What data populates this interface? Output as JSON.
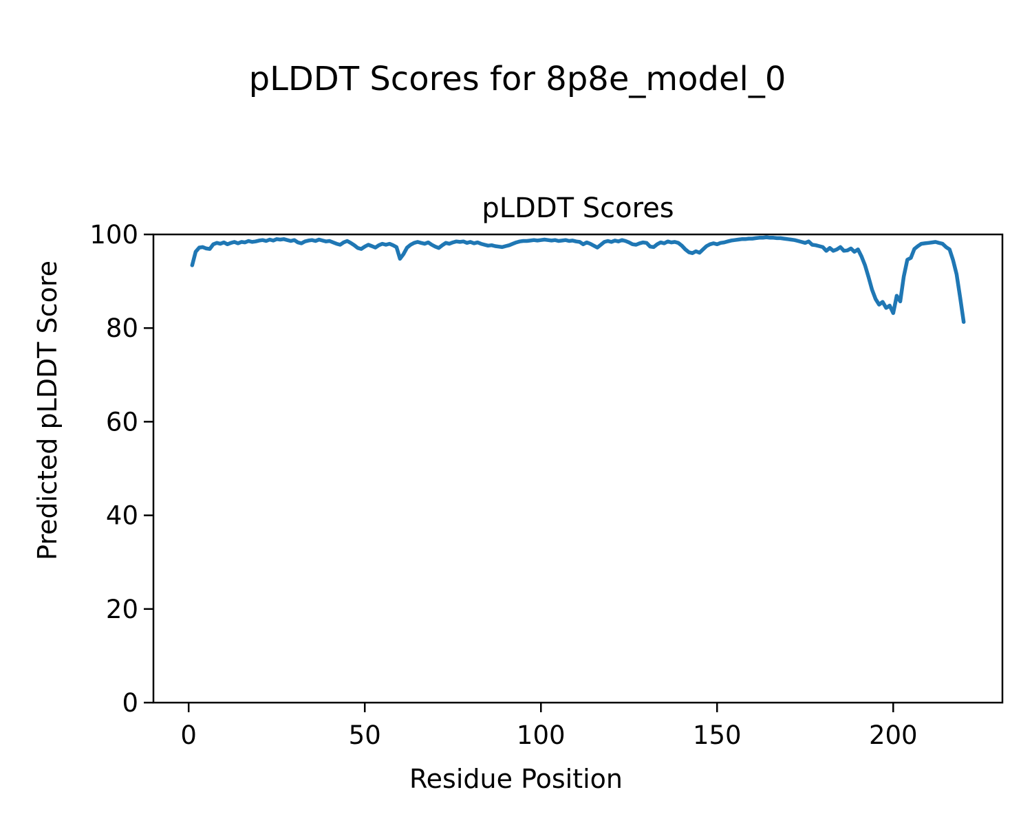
{
  "figure": {
    "suptitle": "pLDDT Scores for 8p8e_model_0",
    "background_color": "#ffffff",
    "text_color": "#000000"
  },
  "chart_data": {
    "type": "line",
    "title": "pLDDT Scores",
    "xlabel": "Residue Position",
    "ylabel": "Predicted pLDDT Score",
    "xlim": [
      -10,
      231
    ],
    "ylim": [
      0,
      100
    ],
    "xticks": [
      0,
      50,
      100,
      150,
      200
    ],
    "yticks": [
      0,
      20,
      40,
      60,
      80,
      100
    ],
    "grid": false,
    "legend": "none",
    "series": [
      {
        "name": "pLDDT",
        "color": "#1f77b4",
        "x_start": 1,
        "x_step": 1,
        "values": [
          93.4,
          96.3,
          97.2,
          97.3,
          97.0,
          96.9,
          97.9,
          98.2,
          98.0,
          98.3,
          97.9,
          98.2,
          98.4,
          98.1,
          98.4,
          98.3,
          98.6,
          98.4,
          98.5,
          98.7,
          98.8,
          98.6,
          98.9,
          98.7,
          99.0,
          98.9,
          99.0,
          98.8,
          98.6,
          98.8,
          98.3,
          98.1,
          98.5,
          98.7,
          98.8,
          98.6,
          98.9,
          98.7,
          98.5,
          98.6,
          98.3,
          98.0,
          97.8,
          98.3,
          98.6,
          98.2,
          97.7,
          97.1,
          96.9,
          97.4,
          97.8,
          97.5,
          97.2,
          97.7,
          98.0,
          97.8,
          98.0,
          97.7,
          97.3,
          94.8,
          95.8,
          97.2,
          97.8,
          98.2,
          98.4,
          98.2,
          98.0,
          98.3,
          97.8,
          97.4,
          97.1,
          97.7,
          98.2,
          98.0,
          98.3,
          98.5,
          98.4,
          98.5,
          98.2,
          98.4,
          98.1,
          98.3,
          98.0,
          97.8,
          97.6,
          97.7,
          97.5,
          97.4,
          97.3,
          97.5,
          97.7,
          98.0,
          98.3,
          98.5,
          98.6,
          98.6,
          98.7,
          98.8,
          98.7,
          98.8,
          98.9,
          98.8,
          98.7,
          98.8,
          98.6,
          98.7,
          98.8,
          98.6,
          98.7,
          98.5,
          98.4,
          97.9,
          98.3,
          98.0,
          97.6,
          97.2,
          97.8,
          98.4,
          98.6,
          98.4,
          98.7,
          98.5,
          98.8,
          98.6,
          98.3,
          97.9,
          97.8,
          98.1,
          98.3,
          98.2,
          97.4,
          97.3,
          97.9,
          98.3,
          98.1,
          98.5,
          98.3,
          98.4,
          98.2,
          97.6,
          96.8,
          96.2,
          96.0,
          96.4,
          96.1,
          96.8,
          97.5,
          97.9,
          98.1,
          97.9,
          98.2,
          98.3,
          98.5,
          98.7,
          98.8,
          98.9,
          99.0,
          99.0,
          99.1,
          99.1,
          99.2,
          99.3,
          99.3,
          99.4,
          99.3,
          99.3,
          99.2,
          99.2,
          99.1,
          99.0,
          98.9,
          98.8,
          98.6,
          98.4,
          98.2,
          98.5,
          97.8,
          97.7,
          97.5,
          97.3,
          96.5,
          97.1,
          96.5,
          96.8,
          97.3,
          96.5,
          96.6,
          97.0,
          96.3,
          96.8,
          95.3,
          93.4,
          90.9,
          88.2,
          86.2,
          85.0,
          85.6,
          84.3,
          84.8,
          83.2,
          86.9,
          85.7,
          91.0,
          94.6,
          95.0,
          96.9,
          97.5,
          98.0,
          98.1,
          98.2,
          98.3,
          98.4,
          98.2,
          98.0,
          97.3,
          96.8,
          94.5,
          91.5,
          86.5,
          81.3
        ]
      }
    ]
  }
}
